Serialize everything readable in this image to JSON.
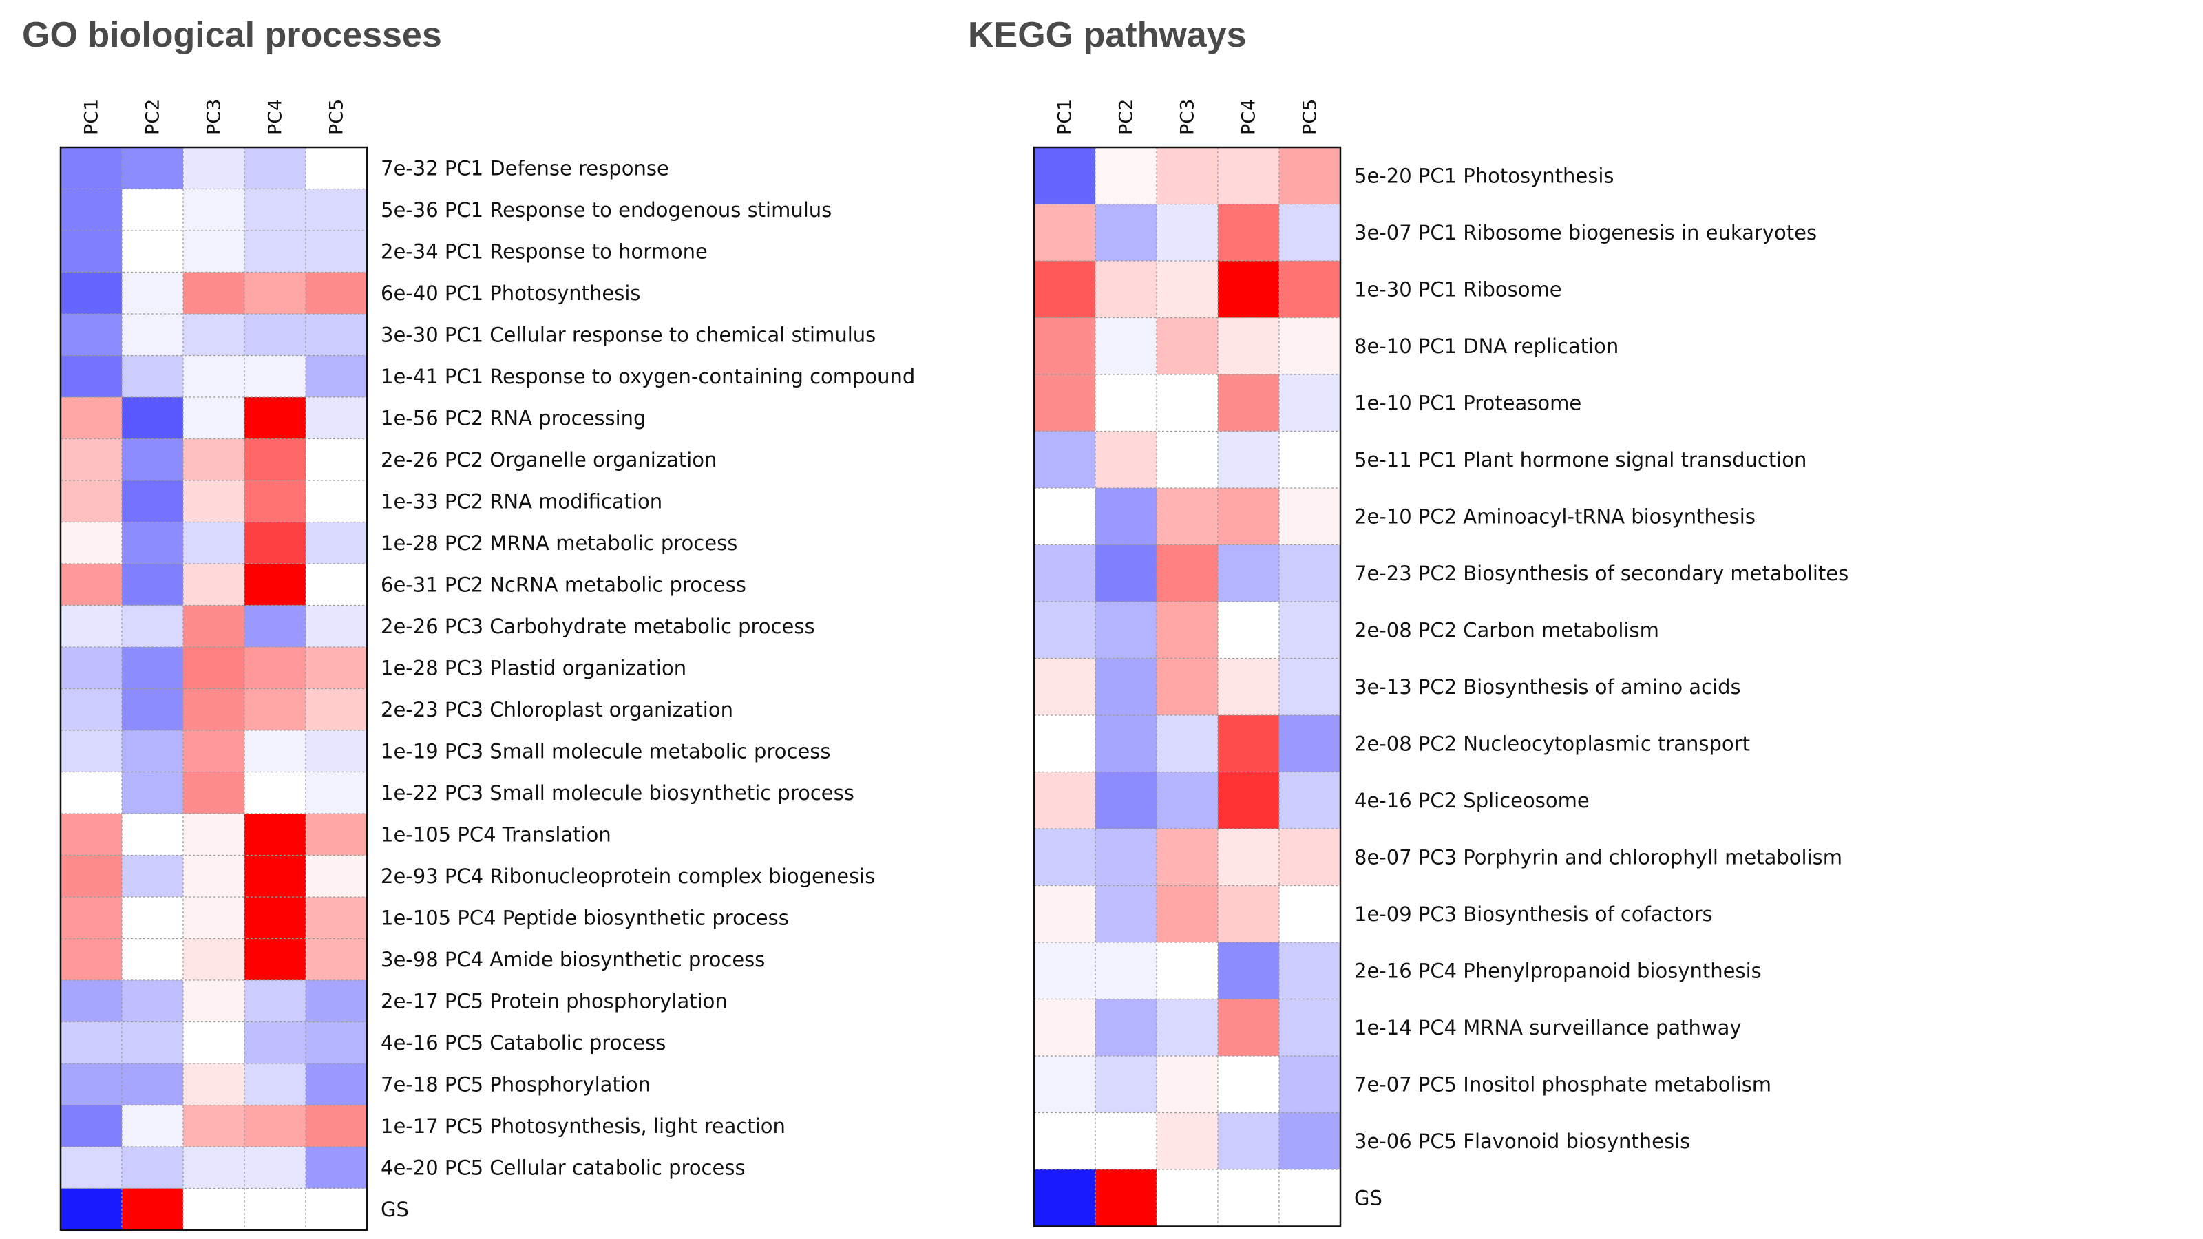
{
  "chart_data": [
    {
      "type": "heatmap",
      "title": "GO biological processes",
      "columns": [
        "PC1",
        "PC2",
        "PC3",
        "PC4",
        "PC5"
      ],
      "value_range": [
        -1,
        1
      ],
      "colors": {
        "negative": "#0000ff",
        "neutral": "#ffffff",
        "positive": "#ff0000"
      },
      "rows": [
        "7e-32 PC1 Defense response",
        "5e-36 PC1 Response to endogenous stimulus",
        "2e-34 PC1 Response to hormone",
        "6e-40 PC1 Photosynthesis",
        "3e-30 PC1 Cellular response to chemical stimulus",
        "1e-41 PC1 Response to oxygen-containing compound",
        "1e-56 PC2 RNA processing",
        "2e-26 PC2 Organelle organization",
        "1e-33 PC2 RNA modification",
        "1e-28 PC2 MRNA metabolic process",
        "6e-31 PC2 NcRNA metabolic process",
        "2e-26 PC3 Carbohydrate metabolic process",
        "1e-28 PC3 Plastid organization",
        "2e-23 PC3 Chloroplast organization",
        "1e-19 PC3 Small molecule metabolic process",
        "1e-22 PC3 Small molecule biosynthetic process",
        "1e-105 PC4 Translation",
        "2e-93 PC4 Ribonucleoprotein complex biogenesis",
        "1e-105 PC4 Peptide biosynthetic process",
        "3e-98 PC4 Amide biosynthetic process",
        "2e-17 PC5 Protein phosphorylation",
        "4e-16 PC5 Catabolic process",
        "7e-18 PC5 Phosphorylation",
        "1e-17 PC5 Photosynthesis, light reaction",
        "4e-20 PC5 Cellular catabolic process",
        "GS"
      ],
      "values": [
        [
          -0.5,
          -0.45,
          -0.1,
          -0.2,
          0.0
        ],
        [
          -0.5,
          0.0,
          -0.05,
          -0.15,
          -0.15
        ],
        [
          -0.5,
          0.0,
          -0.05,
          -0.15,
          -0.15
        ],
        [
          -0.6,
          -0.05,
          0.45,
          0.35,
          0.45
        ],
        [
          -0.45,
          -0.05,
          -0.15,
          -0.2,
          -0.2
        ],
        [
          -0.55,
          -0.2,
          -0.05,
          -0.05,
          -0.3
        ],
        [
          0.35,
          -0.65,
          -0.05,
          1.0,
          -0.1
        ],
        [
          0.25,
          -0.45,
          0.25,
          0.6,
          0.0
        ],
        [
          0.25,
          -0.55,
          0.15,
          0.55,
          0.0
        ],
        [
          0.05,
          -0.45,
          -0.15,
          0.75,
          -0.15
        ],
        [
          0.4,
          -0.5,
          0.15,
          1.0,
          0.0
        ],
        [
          -0.1,
          -0.15,
          0.45,
          -0.4,
          -0.1
        ],
        [
          -0.25,
          -0.45,
          0.5,
          0.4,
          0.3
        ],
        [
          -0.2,
          -0.45,
          0.45,
          0.35,
          0.2
        ],
        [
          -0.15,
          -0.3,
          0.4,
          -0.05,
          -0.1
        ],
        [
          0.0,
          -0.3,
          0.45,
          0.0,
          -0.05
        ],
        [
          0.4,
          0.0,
          0.05,
          1.0,
          0.35
        ],
        [
          0.45,
          -0.2,
          0.05,
          1.0,
          0.05
        ],
        [
          0.4,
          0.0,
          0.05,
          1.0,
          0.3
        ],
        [
          0.4,
          0.0,
          0.1,
          1.0,
          0.3
        ],
        [
          -0.35,
          -0.25,
          0.05,
          -0.2,
          -0.35
        ],
        [
          -0.2,
          -0.2,
          0.0,
          -0.25,
          -0.3
        ],
        [
          -0.35,
          -0.35,
          0.1,
          -0.15,
          -0.4
        ],
        [
          -0.5,
          -0.05,
          0.3,
          0.35,
          0.45
        ],
        [
          -0.15,
          -0.2,
          -0.1,
          -0.1,
          -0.4
        ],
        [
          -0.9,
          1.0,
          0.0,
          0.0,
          0.0
        ]
      ]
    },
    {
      "type": "heatmap",
      "title": "KEGG pathways",
      "columns": [
        "PC1",
        "PC2",
        "PC3",
        "PC4",
        "PC5"
      ],
      "value_range": [
        -1,
        1
      ],
      "colors": {
        "negative": "#0000ff",
        "neutral": "#ffffff",
        "positive": "#ff0000"
      },
      "rows": [
        "5e-20 PC1 Photosynthesis",
        "3e-07 PC1 Ribosome biogenesis in eukaryotes",
        "1e-30 PC1 Ribosome",
        "8e-10 PC1 DNA replication",
        "1e-10 PC1 Proteasome",
        "5e-11 PC1 Plant hormone signal transduction",
        "2e-10 PC2 Aminoacyl-tRNA biosynthesis",
        "7e-23 PC2 Biosynthesis of secondary metabolites",
        "2e-08 PC2 Carbon metabolism",
        "3e-13 PC2 Biosynthesis of amino acids",
        "2e-08 PC2 Nucleocytoplasmic transport",
        "4e-16 PC2 Spliceosome",
        "8e-07 PC3 Porphyrin and chlorophyll metabolism",
        "1e-09 PC3 Biosynthesis of cofactors",
        "2e-16 PC4 Phenylpropanoid biosynthesis",
        "1e-14 PC4 MRNA surveillance pathway",
        "7e-07 PC5 Inositol phosphate metabolism",
        "3e-06 PC5 Flavonoid biosynthesis",
        "GS"
      ],
      "values": [
        [
          -0.6,
          0.03,
          0.18,
          0.15,
          0.35
        ],
        [
          0.3,
          -0.3,
          -0.1,
          0.55,
          -0.15
        ],
        [
          0.65,
          0.15,
          0.1,
          1.0,
          0.55
        ],
        [
          0.45,
          -0.05,
          0.25,
          0.1,
          0.05
        ],
        [
          0.45,
          0.0,
          0.0,
          0.45,
          -0.1
        ],
        [
          -0.3,
          0.15,
          0.0,
          -0.1,
          0.0
        ],
        [
          0.0,
          -0.4,
          0.3,
          0.35,
          0.05
        ],
        [
          -0.25,
          -0.5,
          0.5,
          -0.3,
          -0.2
        ],
        [
          -0.2,
          -0.3,
          0.35,
          0.0,
          -0.15
        ],
        [
          0.1,
          -0.35,
          0.35,
          0.1,
          -0.15
        ],
        [
          0.0,
          -0.35,
          -0.15,
          0.7,
          -0.4
        ],
        [
          0.15,
          -0.45,
          -0.3,
          0.8,
          -0.2
        ],
        [
          -0.2,
          -0.25,
          0.3,
          0.1,
          0.15
        ],
        [
          0.05,
          -0.25,
          0.35,
          0.2,
          0.0
        ],
        [
          -0.05,
          -0.05,
          0.0,
          -0.45,
          -0.2
        ],
        [
          0.05,
          -0.3,
          -0.15,
          0.45,
          -0.2
        ],
        [
          -0.05,
          -0.15,
          0.05,
          0.0,
          -0.25
        ],
        [
          0.0,
          0.0,
          0.1,
          -0.2,
          -0.35
        ],
        [
          -0.9,
          1.0,
          0.0,
          0.0,
          0.0
        ]
      ]
    }
  ]
}
